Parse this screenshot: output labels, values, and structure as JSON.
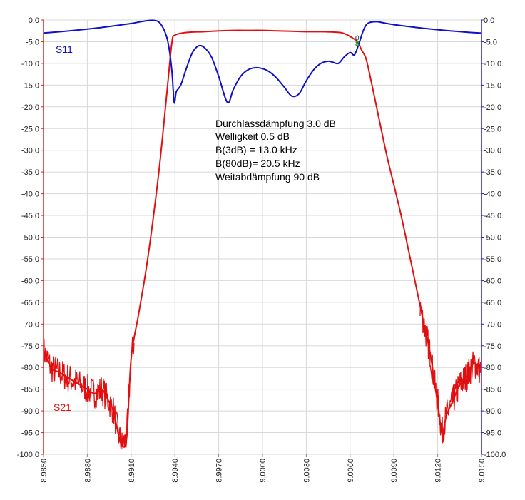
{
  "chart_data": {
    "type": "line",
    "xlim": [
      8.985,
      9.015
    ],
    "ylim": [
      -100,
      0
    ],
    "y2lim": [
      -100,
      0
    ],
    "grid": true,
    "x_ticks": [
      "8.9850",
      "8.9880",
      "8.9910",
      "8.9940",
      "8.9970",
      "9.0000",
      "9.0030",
      "9.0060",
      "9.0090",
      "9.0120",
      "9.0150"
    ],
    "y_ticks": [
      "0.0",
      "-5.0",
      "-10.0",
      "-15.0",
      "-20.0",
      "-25.0",
      "-30.0",
      "-35.0",
      "-40.0",
      "-45.0",
      "-50.0",
      "-55.0",
      "-60.0",
      "-65.0",
      "-70.0",
      "-75.0",
      "-80.0",
      "-85.0",
      "-90.0",
      "-95.0",
      "-100.0"
    ],
    "colors": {
      "s11": "#1010c8",
      "s21": "#e01010",
      "marker": "#20a020",
      "grid": "#d8d8d8",
      "left_axis": "#e02020",
      "right_axis": "#2020d0"
    },
    "series": [
      {
        "name": "S11",
        "key": "s11",
        "x": [
          8.985,
          8.9865,
          8.988,
          8.9895,
          8.991,
          8.992,
          8.9926,
          8.993,
          8.9934,
          8.9936,
          8.9938,
          8.99395,
          8.9941,
          8.9944,
          8.9948,
          8.9952,
          8.9956,
          8.996,
          8.9965,
          8.997,
          8.9976,
          8.998,
          8.9985,
          8.999,
          8.9995,
          9.0,
          9.0005,
          9.001,
          9.0015,
          9.002,
          9.0025,
          9.003,
          9.0035,
          9.004,
          9.0045,
          9.0048,
          9.0052,
          9.0056,
          9.006,
          9.0063,
          9.0066,
          9.0069,
          9.0072,
          9.0078,
          9.0085,
          9.0095,
          9.011,
          9.0125,
          9.014,
          9.015
        ],
        "y": [
          -3.0,
          -2.6,
          -2.1,
          -1.5,
          -0.8,
          -0.2,
          -0.1,
          -0.8,
          -3.5,
          -6.5,
          -12.0,
          -19.0,
          -16.5,
          -15.0,
          -11.0,
          -7.5,
          -6.0,
          -6.3,
          -8.5,
          -13.0,
          -19.0,
          -16.0,
          -13.0,
          -11.5,
          -11.0,
          -11.2,
          -12.0,
          -13.5,
          -15.5,
          -17.5,
          -17.0,
          -14.0,
          -11.5,
          -10.0,
          -9.5,
          -9.7,
          -10.0,
          -8.5,
          -7.5,
          -8.0,
          -5.5,
          -2.5,
          -0.8,
          -0.4,
          -0.8,
          -1.3,
          -1.9,
          -2.4,
          -2.8,
          -3.0
        ]
      },
      {
        "name": "S21",
        "key": "s21",
        "x": [
          8.985,
          8.9855,
          8.986,
          8.9865,
          8.987,
          8.9875,
          8.988,
          8.9885,
          8.989,
          8.9895,
          8.9898,
          8.9901,
          8.9904,
          8.9907,
          8.991,
          8.9915,
          8.992,
          8.9925,
          8.993,
          8.9935,
          8.9938,
          8.994,
          8.9945,
          8.995,
          8.996,
          8.997,
          8.998,
          8.999,
          9.0,
          9.001,
          9.002,
          9.003,
          9.004,
          9.005,
          9.0055,
          9.006,
          9.0065,
          9.0068,
          9.0071,
          9.0075,
          9.008,
          9.0085,
          9.009,
          9.0095,
          9.01,
          9.0105,
          9.011,
          9.0115,
          9.0118,
          9.012,
          9.0123,
          9.0126,
          9.013,
          9.0135,
          9.014,
          9.0145,
          9.015
        ],
        "y": [
          -76.0,
          -80.0,
          -81.0,
          -82.0,
          -83.0,
          -84.0,
          -85.0,
          -86.0,
          -85.0,
          -88.0,
          -90.0,
          -95.0,
          -98.0,
          -96.0,
          -78.0,
          -68.0,
          -58.0,
          -46.0,
          -32.0,
          -15.0,
          -5.0,
          -3.5,
          -3.0,
          -2.8,
          -2.7,
          -2.5,
          -2.4,
          -2.4,
          -2.4,
          -2.5,
          -2.6,
          -2.7,
          -2.7,
          -2.8,
          -3.0,
          -3.8,
          -5.0,
          -7.0,
          -9.0,
          -15.0,
          -23.0,
          -31.0,
          -38.0,
          -45.0,
          -53.0,
          -61.0,
          -69.0,
          -77.0,
          -84.0,
          -88.0,
          -95.0,
          -91.0,
          -88.0,
          -84.0,
          -82.0,
          -79.0,
          -81.0
        ]
      }
    ],
    "series_labels": {
      "s11": "S11",
      "s21": "S21"
    },
    "annotations": [
      "Durchlassdämpfung 3.0 dB",
      "Welligkeit 0.5 dB",
      "B(3dB)  = 13.0 kHz",
      "B(80dB)= 20.5 kHz",
      "Weitabdämpfung 90 dB"
    ],
    "markers": [
      {
        "x": 9.0065,
        "y": -4.0,
        "label": "0"
      },
      {
        "x": 9.0065,
        "y": -5.3,
        "label": "8"
      }
    ]
  }
}
